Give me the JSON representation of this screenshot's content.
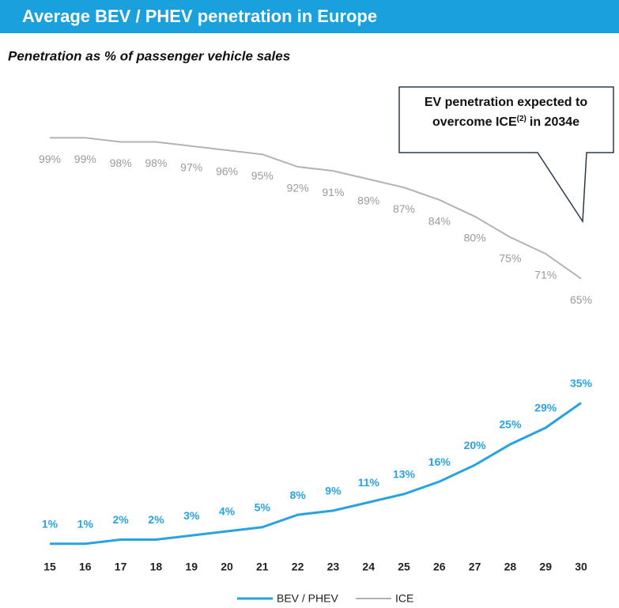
{
  "chart_data": {
    "type": "line",
    "title": "Average BEV / PHEV penetration in Europe",
    "subtitle": "Penetration as % of passenger vehicle sales",
    "annotation": [
      "EV penetration expected to",
      "overcome ICE",
      "(2)",
      "in 2034e"
    ],
    "categories": [
      "15",
      "16",
      "17",
      "18",
      "19",
      "20",
      "21",
      "22",
      "23",
      "24",
      "25",
      "26",
      "27",
      "28",
      "29",
      "30"
    ],
    "ylim": [
      0,
      100
    ],
    "series": [
      {
        "name": "BEV / PHEV",
        "color": "#29a3df",
        "values": [
          1,
          1,
          2,
          2,
          3,
          4,
          5,
          8,
          9,
          11,
          13,
          16,
          20,
          25,
          29,
          35
        ],
        "value_labels": [
          "1%",
          "1%",
          "2%",
          "2%",
          "3%",
          "4%",
          "5%",
          "8%",
          "9%",
          "11%",
          "13%",
          "16%",
          "20%",
          "25%",
          "29%",
          "35%"
        ]
      },
      {
        "name": "ICE",
        "color": "#b3b3b3",
        "values": [
          99,
          99,
          98,
          98,
          97,
          96,
          95,
          92,
          91,
          89,
          87,
          84,
          80,
          75,
          71,
          65
        ],
        "value_labels": [
          "99%",
          "99%",
          "98%",
          "98%",
          "97%",
          "96%",
          "95%",
          "92%",
          "91%",
          "89%",
          "87%",
          "84%",
          "80%",
          "75%",
          "71%",
          "65%"
        ]
      }
    ]
  }
}
